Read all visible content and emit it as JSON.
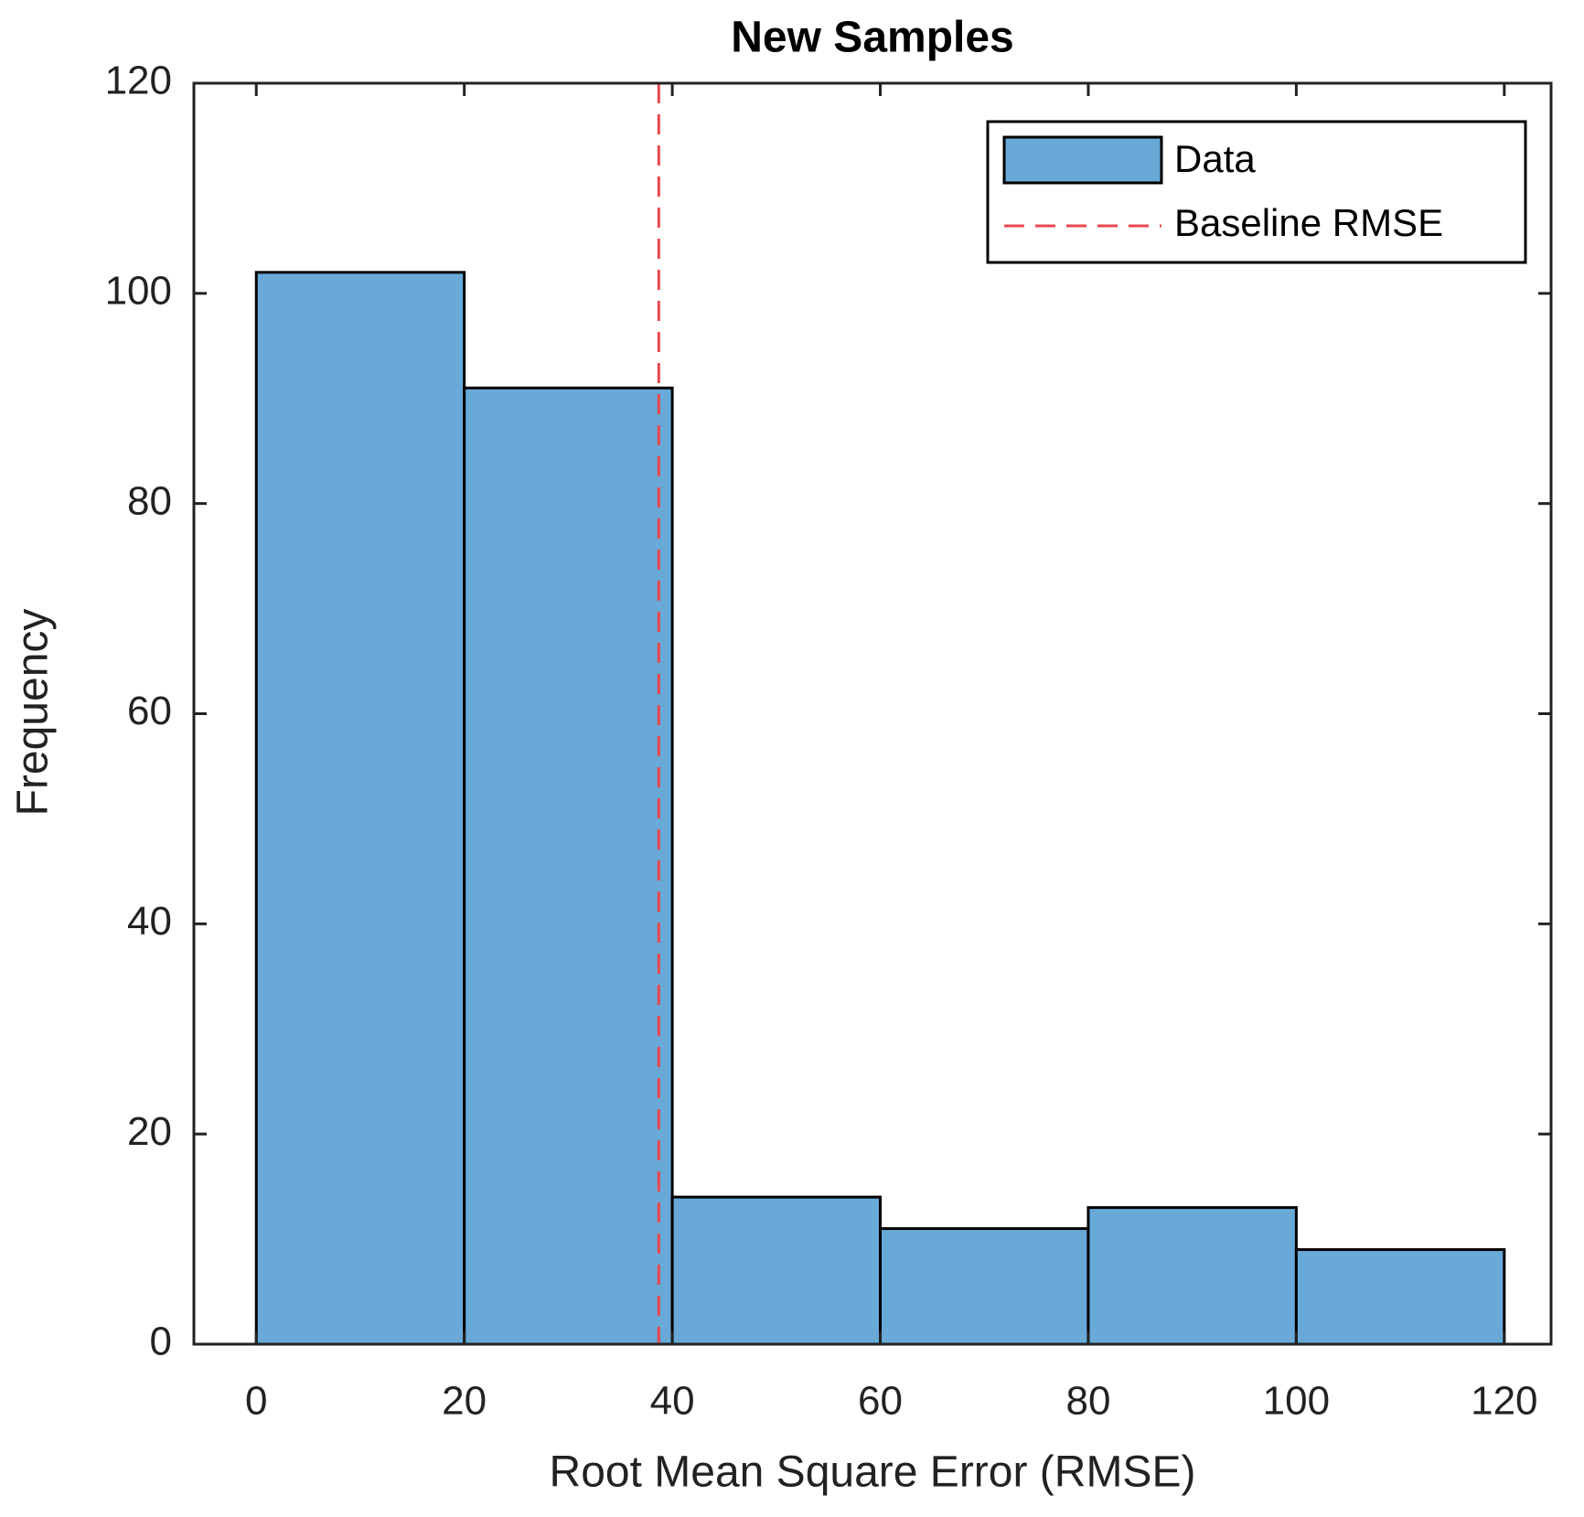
{
  "chart_data": {
    "type": "histogram",
    "title": "New Samples",
    "x_label": "Root Mean Square Error (RMSE)",
    "y_label": "Frequency",
    "bins": [
      0,
      20,
      40,
      60,
      80,
      100,
      120
    ],
    "series": [
      {
        "name": "Data",
        "color": "#68a9d7",
        "values": [
          102,
          91,
          14,
          11,
          13,
          9
        ]
      }
    ],
    "reference_line": {
      "name": "Baseline RMSE",
      "x": 38.7,
      "color": "#e8474c"
    },
    "xlim": [
      -6,
      124.5
    ],
    "ylim": [
      0,
      120
    ],
    "xticks": [
      0,
      20,
      40,
      60,
      80,
      100,
      120
    ],
    "yticks": [
      0,
      20,
      40,
      60,
      80,
      100,
      120
    ],
    "legend": "upper right"
  }
}
